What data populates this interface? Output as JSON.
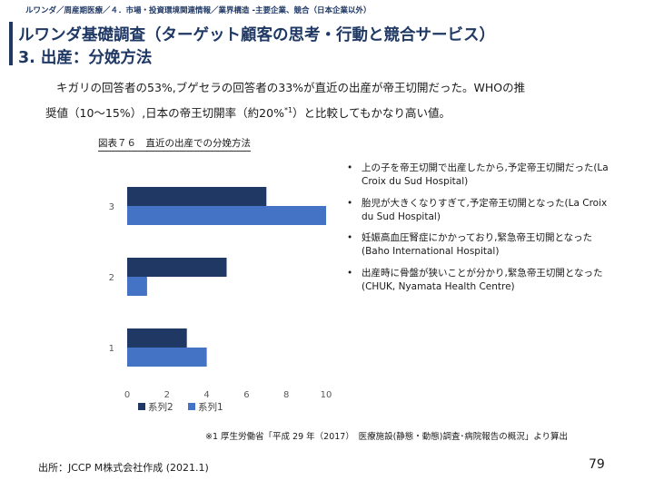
{
  "header": {
    "breadcrumb": "ルワンダ／周産期医療／４．市場・投資環境関連情報／業界構造 -主要企業、競合（日本企業以外）",
    "title_line1": "ルワンダ基礎調査（ターゲット顧客の思考・行動と競合サービス）",
    "title_line2": "3. 出産：分娩方法"
  },
  "intro": {
    "line1": "キガリの回答者の53%,ブゲセラの回答者の33%が直近の出産が帝王切開だった。WHOの推",
    "line2_a": "奨値（10～15%）,日本の帝王切開率（約20%",
    "line2_sup": "*1",
    "line2_b": "）と比較してもかなり高い値。"
  },
  "figure": {
    "caption": "図表７６　直近の出産での分娩方法"
  },
  "chart_data": {
    "type": "bar",
    "orientation": "horizontal",
    "categories": [
      "1",
      "2",
      "3"
    ],
    "series": [
      {
        "name": "系列1",
        "values": [
          4,
          1,
          10
        ],
        "color": "#4472c4"
      },
      {
        "name": "系列2",
        "values": [
          3,
          5,
          7
        ],
        "color": "#203864"
      }
    ],
    "x_ticks": [
      0,
      2,
      4,
      6,
      8,
      10
    ],
    "xlim": [
      0,
      10
    ],
    "legend_order": [
      "系列2",
      "系列1"
    ],
    "legend_position": "bottom",
    "grid": false
  },
  "notes": {
    "bullet": "•",
    "items": [
      "上の子を帝王切開で出産したから,予定帝王切開だった(La Croix du Sud Hospital)",
      "胎児が大きくなりすぎて,予定帝王切開となった(La Croix du Sud Hospital)",
      "妊娠高血圧腎症にかかっており,緊急帝王切開となった(Baho International Hospital)",
      "出産時に骨盤が狭いことが分かり,緊急帝王切開となった(CHUK, Nyamata Health Centre)"
    ]
  },
  "footnote": "※1 厚生労働省「平成 29 年（2017）　医療施設(静態・動態)調査･病院報告の概況」より算出",
  "footer": {
    "source": "出所：JCCP M株式会社作成 (2021.1)",
    "page_number": "79"
  }
}
